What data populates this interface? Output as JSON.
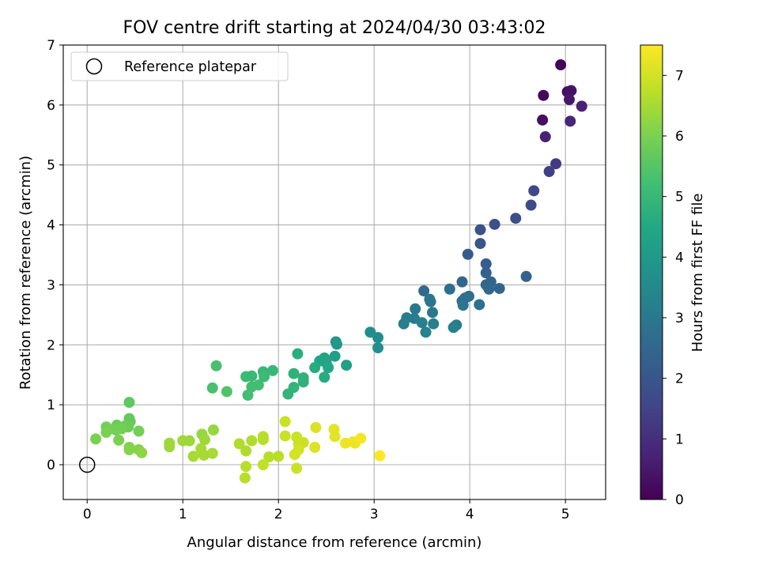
{
  "chart_data": {
    "type": "scatter",
    "title": "FOV centre drift starting at 2024/04/30 03:43:02",
    "xlabel": "Angular distance from reference (arcmin)",
    "ylabel": "Rotation from reference (arcmin)",
    "xlim": [
      -0.25,
      5.42
    ],
    "ylim": [
      -0.58,
      7.0
    ],
    "xticks": [
      0,
      1,
      2,
      3,
      4,
      5
    ],
    "yticks": [
      0,
      1,
      2,
      3,
      4,
      5,
      6,
      7
    ],
    "grid": true,
    "legend": {
      "position": "top-left",
      "entries": [
        "Reference platepar"
      ]
    },
    "reference_point": {
      "x": 0,
      "y": 0,
      "label": "Reference platepar"
    },
    "colormap": "viridis",
    "colorbar": {
      "label": "Hours from first FF file",
      "min": 0,
      "max": 7.5,
      "ticks": [
        0,
        1,
        2,
        3,
        4,
        5,
        6,
        7
      ]
    },
    "points": [
      {
        "x": 4.95,
        "y": 6.67,
        "h": 0.1
      },
      {
        "x": 5.02,
        "y": 6.22,
        "h": 0.3
      },
      {
        "x": 5.06,
        "y": 6.24,
        "h": 0.4
      },
      {
        "x": 4.77,
        "y": 6.16,
        "h": 0.2
      },
      {
        "x": 5.04,
        "y": 6.09,
        "h": 0.5
      },
      {
        "x": 5.17,
        "y": 5.98,
        "h": 0.7
      },
      {
        "x": 4.76,
        "y": 5.75,
        "h": 0.3
      },
      {
        "x": 5.05,
        "y": 5.73,
        "h": 0.8
      },
      {
        "x": 4.79,
        "y": 5.47,
        "h": 0.7
      },
      {
        "x": 4.9,
        "y": 5.02,
        "h": 1.3
      },
      {
        "x": 4.83,
        "y": 4.89,
        "h": 1.4
      },
      {
        "x": 4.67,
        "y": 4.57,
        "h": 1.6
      },
      {
        "x": 4.64,
        "y": 4.33,
        "h": 1.7
      },
      {
        "x": 4.48,
        "y": 4.11,
        "h": 1.8
      },
      {
        "x": 4.26,
        "y": 4.01,
        "h": 1.8
      },
      {
        "x": 4.11,
        "y": 3.92,
        "h": 1.9
      },
      {
        "x": 4.11,
        "y": 3.69,
        "h": 2.0
      },
      {
        "x": 3.98,
        "y": 3.51,
        "h": 2.1
      },
      {
        "x": 4.17,
        "y": 3.35,
        "h": 2.2
      },
      {
        "x": 4.17,
        "y": 3.2,
        "h": 2.3
      },
      {
        "x": 4.59,
        "y": 3.14,
        "h": 2.3
      },
      {
        "x": 4.22,
        "y": 3.05,
        "h": 2.4
      },
      {
        "x": 3.92,
        "y": 3.05,
        "h": 2.5
      },
      {
        "x": 4.17,
        "y": 3.0,
        "h": 2.5
      },
      {
        "x": 4.31,
        "y": 2.94,
        "h": 2.4
      },
      {
        "x": 4.2,
        "y": 2.93,
        "h": 2.5
      },
      {
        "x": 3.52,
        "y": 2.9,
        "h": 2.6
      },
      {
        "x": 3.79,
        "y": 2.93,
        "h": 2.7
      },
      {
        "x": 3.99,
        "y": 2.81,
        "h": 2.7
      },
      {
        "x": 3.95,
        "y": 2.78,
        "h": 2.8
      },
      {
        "x": 3.92,
        "y": 2.73,
        "h": 2.7
      },
      {
        "x": 3.58,
        "y": 2.76,
        "h": 2.9
      },
      {
        "x": 3.59,
        "y": 2.72,
        "h": 2.9
      },
      {
        "x": 4.1,
        "y": 2.67,
        "h": 2.8
      },
      {
        "x": 3.93,
        "y": 2.66,
        "h": 2.9
      },
      {
        "x": 3.43,
        "y": 2.6,
        "h": 3.0
      },
      {
        "x": 3.61,
        "y": 2.54,
        "h": 3.0
      },
      {
        "x": 3.34,
        "y": 2.45,
        "h": 3.1
      },
      {
        "x": 3.42,
        "y": 2.44,
        "h": 3.1
      },
      {
        "x": 3.5,
        "y": 2.37,
        "h": 3.2
      },
      {
        "x": 3.31,
        "y": 2.35,
        "h": 3.2
      },
      {
        "x": 3.62,
        "y": 2.35,
        "h": 3.2
      },
      {
        "x": 3.86,
        "y": 2.33,
        "h": 3.1
      },
      {
        "x": 3.83,
        "y": 2.29,
        "h": 3.2
      },
      {
        "x": 3.54,
        "y": 2.21,
        "h": 3.3
      },
      {
        "x": 2.96,
        "y": 2.21,
        "h": 3.6
      },
      {
        "x": 3.04,
        "y": 2.12,
        "h": 3.6
      },
      {
        "x": 3.04,
        "y": 1.95,
        "h": 3.7
      },
      {
        "x": 2.6,
        "y": 2.05,
        "h": 3.9
      },
      {
        "x": 2.61,
        "y": 2.01,
        "h": 4.0
      },
      {
        "x": 2.71,
        "y": 1.66,
        "h": 4.2
      },
      {
        "x": 2.59,
        "y": 1.81,
        "h": 4.2
      },
      {
        "x": 2.48,
        "y": 1.78,
        "h": 4.3
      },
      {
        "x": 2.43,
        "y": 1.73,
        "h": 4.4
      },
      {
        "x": 2.5,
        "y": 1.7,
        "h": 4.4
      },
      {
        "x": 2.52,
        "y": 1.62,
        "h": 4.5
      },
      {
        "x": 2.38,
        "y": 1.62,
        "h": 4.6
      },
      {
        "x": 2.48,
        "y": 1.46,
        "h": 4.6
      },
      {
        "x": 2.2,
        "y": 1.85,
        "h": 4.7
      },
      {
        "x": 2.16,
        "y": 1.52,
        "h": 4.8
      },
      {
        "x": 2.26,
        "y": 1.45,
        "h": 4.8
      },
      {
        "x": 2.26,
        "y": 1.38,
        "h": 4.8
      },
      {
        "x": 2.16,
        "y": 1.29,
        "h": 4.9
      },
      {
        "x": 2.1,
        "y": 1.18,
        "h": 4.9
      },
      {
        "x": 1.94,
        "y": 1.57,
        "h": 5.0
      },
      {
        "x": 1.84,
        "y": 1.55,
        "h": 5.0
      },
      {
        "x": 1.85,
        "y": 1.47,
        "h": 5.1
      },
      {
        "x": 1.66,
        "y": 1.47,
        "h": 5.1
      },
      {
        "x": 1.72,
        "y": 1.48,
        "h": 5.0
      },
      {
        "x": 1.79,
        "y": 1.33,
        "h": 5.2
      },
      {
        "x": 1.72,
        "y": 1.3,
        "h": 5.2
      },
      {
        "x": 1.68,
        "y": 1.16,
        "h": 5.2
      },
      {
        "x": 1.35,
        "y": 1.65,
        "h": 5.3
      },
      {
        "x": 1.31,
        "y": 1.28,
        "h": 5.3
      },
      {
        "x": 1.46,
        "y": 1.22,
        "h": 5.4
      },
      {
        "x": 0.44,
        "y": 1.04,
        "h": 5.6
      },
      {
        "x": 0.44,
        "y": 0.77,
        "h": 5.7
      },
      {
        "x": 0.45,
        "y": 0.72,
        "h": 5.7
      },
      {
        "x": 0.31,
        "y": 0.66,
        "h": 5.8
      },
      {
        "x": 0.2,
        "y": 0.63,
        "h": 5.9
      },
      {
        "x": 0.4,
        "y": 0.65,
        "h": 5.8
      },
      {
        "x": 0.43,
        "y": 0.63,
        "h": 5.8
      },
      {
        "x": 0.36,
        "y": 0.6,
        "h": 5.9
      },
      {
        "x": 0.3,
        "y": 0.58,
        "h": 5.9
      },
      {
        "x": 0.54,
        "y": 0.56,
        "h": 5.9
      },
      {
        "x": 0.2,
        "y": 0.54,
        "h": 6.0
      },
      {
        "x": 0.09,
        "y": 0.43,
        "h": 6.0
      },
      {
        "x": 0.33,
        "y": 0.41,
        "h": 6.0
      },
      {
        "x": 0.44,
        "y": 0.29,
        "h": 6.1
      },
      {
        "x": 0.44,
        "y": 0.25,
        "h": 6.1
      },
      {
        "x": 0.54,
        "y": 0.25,
        "h": 6.1
      },
      {
        "x": 0.57,
        "y": 0.2,
        "h": 6.2
      },
      {
        "x": 1.32,
        "y": 0.58,
        "h": 6.3
      },
      {
        "x": 1.2,
        "y": 0.51,
        "h": 6.3
      },
      {
        "x": 1.23,
        "y": 0.42,
        "h": 6.4
      },
      {
        "x": 1.07,
        "y": 0.4,
        "h": 6.4
      },
      {
        "x": 1.0,
        "y": 0.4,
        "h": 6.4
      },
      {
        "x": 0.86,
        "y": 0.36,
        "h": 6.4
      },
      {
        "x": 0.86,
        "y": 0.3,
        "h": 6.4
      },
      {
        "x": 1.19,
        "y": 0.27,
        "h": 6.5
      },
      {
        "x": 1.31,
        "y": 0.19,
        "h": 6.5
      },
      {
        "x": 1.22,
        "y": 0.16,
        "h": 6.5
      },
      {
        "x": 1.11,
        "y": 0.14,
        "h": 6.5
      },
      {
        "x": 1.59,
        "y": 0.35,
        "h": 6.6
      },
      {
        "x": 1.72,
        "y": 0.4,
        "h": 6.6
      },
      {
        "x": 1.66,
        "y": 0.23,
        "h": 6.6
      },
      {
        "x": 1.84,
        "y": 0.47,
        "h": 6.7
      },
      {
        "x": 1.84,
        "y": 0.42,
        "h": 6.7
      },
      {
        "x": 1.9,
        "y": 0.13,
        "h": 6.7
      },
      {
        "x": 2.0,
        "y": 0.14,
        "h": 6.7
      },
      {
        "x": 1.66,
        "y": -0.03,
        "h": 6.7
      },
      {
        "x": 1.84,
        "y": 0.0,
        "h": 6.8
      },
      {
        "x": 1.65,
        "y": -0.22,
        "h": 6.7
      },
      {
        "x": 2.07,
        "y": 0.72,
        "h": 6.9
      },
      {
        "x": 2.07,
        "y": 0.48,
        "h": 6.9
      },
      {
        "x": 2.19,
        "y": 0.46,
        "h": 6.9
      },
      {
        "x": 2.21,
        "y": 0.35,
        "h": 6.9
      },
      {
        "x": 2.26,
        "y": 0.37,
        "h": 6.9
      },
      {
        "x": 2.21,
        "y": 0.25,
        "h": 7.0
      },
      {
        "x": 2.17,
        "y": 0.17,
        "h": 7.0
      },
      {
        "x": 2.19,
        "y": -0.06,
        "h": 6.9
      },
      {
        "x": 2.39,
        "y": 0.62,
        "h": 7.1
      },
      {
        "x": 2.38,
        "y": 0.29,
        "h": 7.1
      },
      {
        "x": 2.58,
        "y": 0.59,
        "h": 7.2
      },
      {
        "x": 2.59,
        "y": 0.47,
        "h": 7.2
      },
      {
        "x": 2.7,
        "y": 0.36,
        "h": 7.3
      },
      {
        "x": 2.78,
        "y": 0.38,
        "h": 7.3
      },
      {
        "x": 2.8,
        "y": 0.36,
        "h": 7.3
      },
      {
        "x": 2.86,
        "y": 0.44,
        "h": 7.4
      },
      {
        "x": 3.06,
        "y": 0.15,
        "h": 7.5
      }
    ]
  }
}
